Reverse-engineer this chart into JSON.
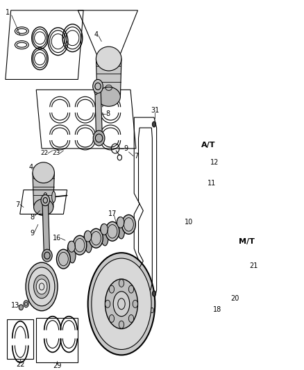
{
  "background_color": "#ffffff",
  "line_color": "#000000",
  "fig_width": 4.38,
  "fig_height": 5.33,
  "dpi": 100
}
